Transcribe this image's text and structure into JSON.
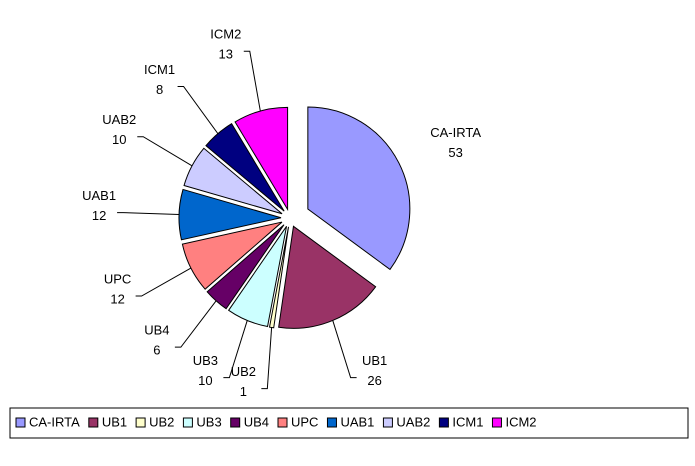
{
  "chart_data": {
    "type": "pie",
    "categories": [
      "CA-IRTA",
      "UB1",
      "UB2",
      "UB3",
      "UB4",
      "UPC",
      "UAB1",
      "UAB2",
      "ICM1",
      "ICM2"
    ],
    "values": [
      53,
      26,
      1,
      10,
      6,
      12,
      12,
      10,
      8,
      13
    ],
    "colors": [
      "#9999ff",
      "#993366",
      "#ffffcc",
      "#ccffff",
      "#660066",
      "#ff8080",
      "#0066cc",
      "#ccccff",
      "#000080",
      "#ff00ff"
    ],
    "legend": "bottom"
  }
}
